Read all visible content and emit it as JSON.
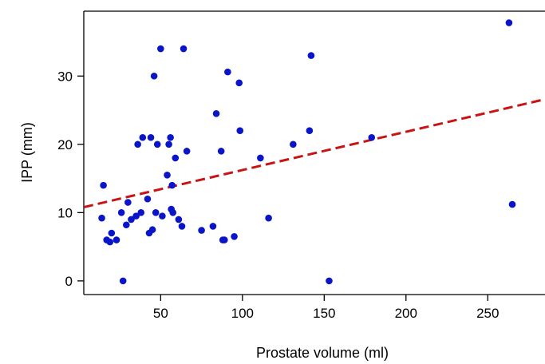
{
  "chart_data": {
    "type": "scatter",
    "title": "",
    "xlabel": "Prostate volume (ml)",
    "ylabel": "IPP (mm)",
    "xlim": [
      3,
      285
    ],
    "ylim": [
      -2,
      39.5
    ],
    "xticks": [
      50,
      100,
      150,
      200,
      250
    ],
    "yticks": [
      0,
      10,
      20,
      30
    ],
    "grid": false,
    "legend": "none",
    "point_color": "#0a14c8",
    "trend_color": "#c81414",
    "series": [
      {
        "points": [
          [
            14,
            9.2
          ],
          [
            15,
            14
          ],
          [
            17,
            6
          ],
          [
            19,
            5.7
          ],
          [
            20,
            7
          ],
          [
            23,
            6
          ],
          [
            26,
            10
          ],
          [
            27,
            0
          ],
          [
            29,
            8.2
          ],
          [
            30,
            11.5
          ],
          [
            32,
            9
          ],
          [
            35,
            9.5
          ],
          [
            36,
            20
          ],
          [
            38,
            10
          ],
          [
            39,
            21
          ],
          [
            42,
            12
          ],
          [
            43,
            7
          ],
          [
            44,
            21
          ],
          [
            45,
            7.5
          ],
          [
            46,
            30
          ],
          [
            47,
            10
          ],
          [
            48,
            20
          ],
          [
            50,
            34
          ],
          [
            51,
            9.5
          ],
          [
            54,
            15.5
          ],
          [
            55,
            20
          ],
          [
            56,
            21
          ],
          [
            56.5,
            10.5
          ],
          [
            57,
            14
          ],
          [
            57.5,
            10
          ],
          [
            59,
            18
          ],
          [
            61,
            9
          ],
          [
            63,
            8
          ],
          [
            64,
            34
          ],
          [
            66,
            19
          ],
          [
            75,
            7.4
          ],
          [
            82,
            8
          ],
          [
            84,
            24.5
          ],
          [
            87,
            19
          ],
          [
            88,
            6
          ],
          [
            89,
            6
          ],
          [
            91,
            30.6
          ],
          [
            95,
            6.5
          ],
          [
            98,
            29
          ],
          [
            98.5,
            22
          ],
          [
            111,
            18
          ],
          [
            116,
            9.2
          ],
          [
            131,
            20
          ],
          [
            141,
            22
          ],
          [
            142,
            33
          ],
          [
            153,
            0
          ],
          [
            179,
            21
          ],
          [
            263,
            37.8
          ],
          [
            265,
            11.2
          ]
        ]
      }
    ],
    "trend_line": {
      "style": "dashed",
      "x": [
        3,
        285
      ],
      "y": [
        10.8,
        26.6
      ]
    }
  }
}
